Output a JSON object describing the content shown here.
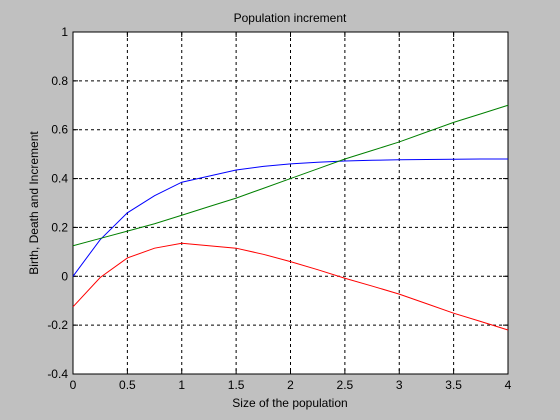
{
  "chart_data": {
    "type": "line",
    "title": "Population increment",
    "xlabel": "Size of the population",
    "ylabel": "Birth, Death and Increment",
    "x": [
      0,
      0.25,
      0.5,
      0.75,
      1,
      1.25,
      1.5,
      1.75,
      2,
      2.25,
      2.5,
      2.75,
      3,
      3.25,
      3.5,
      3.75,
      4
    ],
    "series": [
      {
        "color": "#0000ff",
        "values": [
          0,
          0.15,
          0.26,
          0.33,
          0.385,
          0.41,
          0.435,
          0.45,
          0.46,
          0.467,
          0.472,
          0.475,
          0.477,
          0.478,
          0.479,
          0.48,
          0.48
        ]
      },
      {
        "color": "#008000",
        "values": [
          0.125,
          0.155,
          0.185,
          0.215,
          0.25,
          0.285,
          0.32,
          0.36,
          0.4,
          0.44,
          0.48,
          0.515,
          0.55,
          0.59,
          0.63,
          0.665,
          0.7
        ]
      },
      {
        "color": "#ff0000",
        "values": [
          -0.125,
          -0.005,
          0.075,
          0.115,
          0.135,
          0.125,
          0.115,
          0.09,
          0.06,
          0.027,
          -0.008,
          -0.04,
          -0.073,
          -0.112,
          -0.151,
          -0.185,
          -0.22
        ]
      }
    ],
    "xlim": [
      0,
      4
    ],
    "xticks": [
      0,
      0.5,
      1,
      1.5,
      2,
      2.5,
      3,
      3.5,
      4
    ],
    "ylim": [
      -0.4,
      1
    ],
    "yticks": [
      -0.4,
      -0.2,
      0,
      0.2,
      0.4,
      0.6,
      0.8,
      1
    ],
    "grid": true
  }
}
